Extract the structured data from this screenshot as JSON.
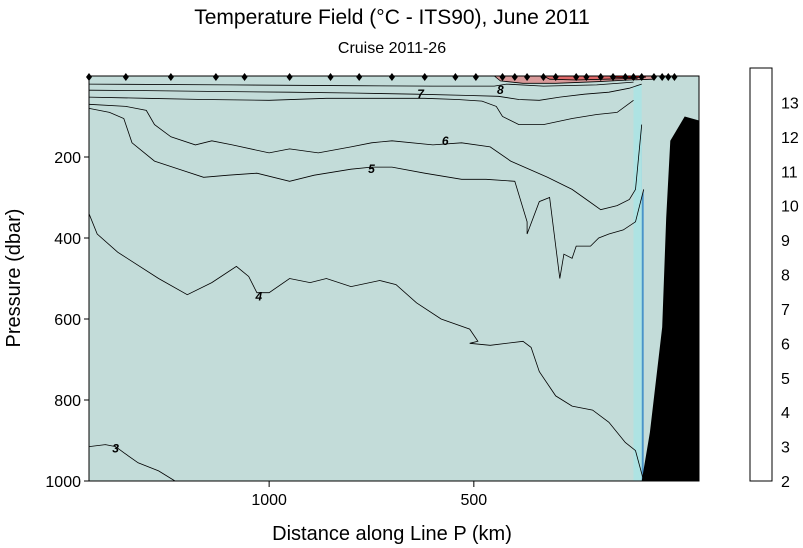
{
  "chart_data": {
    "type": "contour",
    "title": "Temperature Field  (°C - ITS90),  June 2011",
    "subtitle": "Cruise 2011-26",
    "xlabel": "Distance along Line P  (km)",
    "ylabel": "Pressure  (dbar)",
    "x_reversed": true,
    "xlim": [
      1440,
      -50
    ],
    "ylim": [
      1000,
      0
    ],
    "x_ticks": [
      {
        "value": 1000,
        "label": "1000"
      },
      {
        "value": 500,
        "label": "500"
      }
    ],
    "y_ticks": [
      {
        "value": 200,
        "label": "200"
      },
      {
        "value": 400,
        "label": "400"
      },
      {
        "value": 600,
        "label": "600"
      },
      {
        "value": 800,
        "label": "800"
      },
      {
        "value": 1000,
        "label": "1000"
      }
    ],
    "colorbar": {
      "levels": [
        2,
        3,
        4,
        5,
        6,
        7,
        8,
        9,
        10,
        11,
        12,
        13
      ],
      "labels": [
        "2",
        "3",
        "4",
        "5",
        "6",
        "7",
        "8",
        "9",
        "10",
        "11",
        "12",
        "13"
      ],
      "colors": [
        "#003399",
        "#2b66b3",
        "#4a94c9",
        "#6ec6e0",
        "#80ffff",
        "#aee3e3",
        "#c3dcd9",
        "#cccccc",
        "#d99a9a",
        "#e06a6a",
        "#ff0000",
        "#ffffff"
      ]
    },
    "isotherm_labels": [
      {
        "value": 7,
        "label": "7",
        "x": 630,
        "p": 45
      },
      {
        "value": 8,
        "label": "8",
        "x": 435,
        "p": 35
      },
      {
        "value": 6,
        "label": "6",
        "x": 570,
        "p": 160
      },
      {
        "value": 5,
        "label": "5",
        "x": 750,
        "p": 230
      },
      {
        "value": 4,
        "label": "4",
        "x": 1025,
        "p": 545
      },
      {
        "value": 3,
        "label": "3",
        "x": 1375,
        "p": 920
      }
    ],
    "contours": [
      {
        "level": 3,
        "color": "#003399",
        "points": [
          [
            1440,
            915
          ],
          [
            1400,
            910
          ],
          [
            1375,
            915
          ],
          [
            1355,
            930
          ],
          [
            1320,
            955
          ],
          [
            1270,
            975
          ],
          [
            1230,
            1000
          ]
        ]
      },
      {
        "level": 4,
        "color": "#2b66b3",
        "points": [
          [
            1440,
            340
          ],
          [
            1420,
            390
          ],
          [
            1370,
            435
          ],
          [
            1270,
            500
          ],
          [
            1200,
            540
          ],
          [
            1140,
            510
          ],
          [
            1080,
            470
          ],
          [
            1050,
            495
          ],
          [
            1030,
            535
          ],
          [
            1000,
            535
          ],
          [
            950,
            500
          ],
          [
            900,
            510
          ],
          [
            860,
            500
          ],
          [
            800,
            520
          ],
          [
            730,
            505
          ],
          [
            690,
            515
          ],
          [
            640,
            560
          ],
          [
            580,
            600
          ],
          [
            510,
            625
          ],
          [
            490,
            655
          ],
          [
            510,
            660
          ],
          [
            460,
            665
          ],
          [
            380,
            655
          ],
          [
            360,
            670
          ],
          [
            340,
            730
          ],
          [
            300,
            790
          ],
          [
            260,
            815
          ],
          [
            210,
            825
          ],
          [
            170,
            855
          ],
          [
            130,
            905
          ],
          [
            105,
            925
          ],
          [
            85,
            1000
          ]
        ]
      },
      {
        "level": 5,
        "color": "#4a94c9",
        "points": [
          [
            1440,
            80
          ],
          [
            1390,
            90
          ],
          [
            1355,
            105
          ],
          [
            1335,
            165
          ],
          [
            1280,
            210
          ],
          [
            1220,
            230
          ],
          [
            1160,
            250
          ],
          [
            1100,
            245
          ],
          [
            1030,
            240
          ],
          [
            950,
            260
          ],
          [
            890,
            245
          ],
          [
            800,
            230
          ],
          [
            750,
            225
          ],
          [
            700,
            225
          ],
          [
            620,
            240
          ],
          [
            530,
            255
          ],
          [
            470,
            255
          ],
          [
            400,
            260
          ],
          [
            370,
            360
          ],
          [
            370,
            390
          ],
          [
            340,
            310
          ],
          [
            315,
            300
          ],
          [
            290,
            500
          ],
          [
            280,
            440
          ],
          [
            260,
            450
          ],
          [
            250,
            420
          ],
          [
            215,
            420
          ],
          [
            195,
            400
          ],
          [
            170,
            390
          ],
          [
            135,
            380
          ],
          [
            105,
            360
          ],
          [
            85,
            280
          ]
        ]
      },
      {
        "level": 6,
        "color": "#6ec6e0",
        "points": [
          [
            1440,
            70
          ],
          [
            1350,
            75
          ],
          [
            1300,
            85
          ],
          [
            1280,
            120
          ],
          [
            1240,
            150
          ],
          [
            1180,
            170
          ],
          [
            1140,
            160
          ],
          [
            1090,
            170
          ],
          [
            1000,
            190
          ],
          [
            950,
            180
          ],
          [
            880,
            190
          ],
          [
            800,
            175
          ],
          [
            750,
            165
          ],
          [
            700,
            160
          ],
          [
            600,
            170
          ],
          [
            530,
            165
          ],
          [
            460,
            175
          ],
          [
            410,
            210
          ],
          [
            320,
            250
          ],
          [
            260,
            280
          ],
          [
            225,
            305
          ],
          [
            190,
            330
          ],
          [
            150,
            320
          ],
          [
            120,
            305
          ],
          [
            105,
            280
          ],
          [
            90,
            120
          ]
        ]
      },
      {
        "level": 7,
        "color": "#80ffff",
        "points": [
          [
            1440,
            52
          ],
          [
            1300,
            55
          ],
          [
            1160,
            58
          ],
          [
            1000,
            60
          ],
          [
            860,
            55
          ],
          [
            720,
            55
          ],
          [
            620,
            55
          ],
          [
            540,
            58
          ],
          [
            480,
            62
          ],
          [
            445,
            75
          ],
          [
            430,
            100
          ],
          [
            390,
            120
          ],
          [
            330,
            120
          ],
          [
            260,
            105
          ],
          [
            200,
            95
          ],
          [
            150,
            90
          ],
          [
            110,
            60
          ]
        ]
      },
      {
        "level": 8,
        "color": "#aee3e3",
        "points": [
          [
            1440,
            35
          ],
          [
            1300,
            36
          ],
          [
            1150,
            38
          ],
          [
            950,
            40
          ],
          [
            800,
            42
          ],
          [
            640,
            45
          ],
          [
            520,
            48
          ],
          [
            440,
            50
          ],
          [
            390,
            58
          ],
          [
            340,
            60
          ],
          [
            290,
            52
          ],
          [
            230,
            45
          ],
          [
            170,
            40
          ],
          [
            120,
            30
          ],
          [
            90,
            20
          ]
        ]
      },
      {
        "level": 9,
        "color": "#c3dcd9",
        "points": [
          [
            1440,
            20
          ],
          [
            1100,
            22
          ],
          [
            800,
            24
          ],
          [
            600,
            25
          ],
          [
            450,
            25
          ],
          [
            420,
            20
          ],
          [
            330,
            25
          ],
          [
            200,
            22
          ],
          [
            110,
            15
          ]
        ]
      },
      {
        "level": 10,
        "color": "#d99a9a",
        "points": [
          [
            450,
            0
          ],
          [
            435,
            12
          ],
          [
            380,
            18
          ],
          [
            300,
            18
          ],
          [
            200,
            14
          ],
          [
            120,
            10
          ],
          [
            60,
            8
          ]
        ]
      },
      {
        "level": 11,
        "color": "#e06a6a",
        "points": [
          [
            330,
            0
          ],
          [
            315,
            8
          ],
          [
            250,
            10
          ],
          [
            180,
            8
          ],
          [
            100,
            6
          ]
        ]
      },
      {
        "level": 12,
        "color": "#ff0000",
        "points": [
          [
            170,
            0
          ],
          [
            160,
            3
          ],
          [
            120,
            4
          ],
          [
            80,
            3
          ]
        ]
      }
    ],
    "stations": [
      1440,
      1350,
      1240,
      1130,
      1060,
      950,
      850,
      780,
      700,
      620,
      545,
      495,
      430,
      400,
      370,
      330,
      300,
      250,
      225,
      190,
      160,
      130,
      110,
      90,
      60,
      40,
      25,
      10
    ]
  }
}
